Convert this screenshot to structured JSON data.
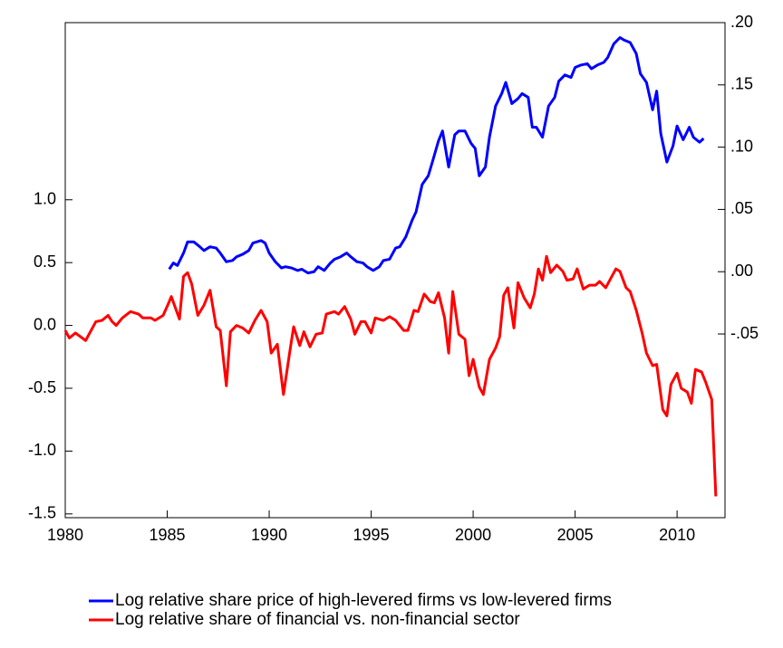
{
  "chart_data": {
    "type": "line",
    "xlim": [
      1980,
      2012.35
    ],
    "xticks": [
      1980,
      1985,
      1990,
      1995,
      2000,
      2005,
      2010
    ],
    "ylim": [
      -1.53,
      2.41
    ],
    "yticks": [
      {
        "value": -1.5,
        "label": "-1.5"
      },
      {
        "value": -1.0,
        "label": "-1.0"
      },
      {
        "value": -0.5,
        "label": "-0.5"
      },
      {
        "value": 0.0,
        "label": "0.0"
      },
      {
        "value": 0.5,
        "label": "0.5"
      },
      {
        "value": 1.0,
        "label": "1.0"
      }
    ],
    "y2lim": [
      -0.1975,
      0.2
    ],
    "y2ticks": [
      {
        "value": -0.05,
        "label": "-.05"
      },
      {
        "value": 0.0,
        "label": ".00"
      },
      {
        "value": 0.05,
        "label": ".05"
      },
      {
        "value": 0.1,
        "label": ".10"
      },
      {
        "value": 0.15,
        "label": ".15"
      },
      {
        "value": 0.2,
        "label": ".20"
      }
    ],
    "series": [
      {
        "name": "Log relative share price of high-levered firms vs low-levered firms",
        "color": "#0000ff",
        "axis": "y2",
        "x": [
          1985.1,
          1985.3,
          1985.5,
          1985.8,
          1986.0,
          1986.3,
          1986.6,
          1986.8,
          1987.1,
          1987.4,
          1987.6,
          1987.9,
          1988.2,
          1988.4,
          1988.7,
          1989.0,
          1989.2,
          1989.6,
          1989.8,
          1990.0,
          1990.3,
          1990.6,
          1990.8,
          1991.1,
          1991.4,
          1991.6,
          1991.9,
          1992.2,
          1992.4,
          1992.7,
          1993.0,
          1993.2,
          1993.5,
          1993.8,
          1994.0,
          1994.3,
          1994.6,
          1994.8,
          1995.1,
          1995.4,
          1995.6,
          1995.9,
          1996.2,
          1996.4,
          1996.7,
          1997.0,
          1997.2,
          1997.5,
          1997.8,
          1998.0,
          1998.3,
          1998.5,
          1998.8,
          1999.1,
          1999.3,
          1999.6,
          1999.9,
          2000.1,
          2000.3,
          2000.6,
          2000.8,
          2001.1,
          2001.4,
          2001.6,
          2001.9,
          2002.2,
          2002.4,
          2002.7,
          2002.9,
          2003.1,
          2003.4,
          2003.7,
          2004.0,
          2004.2,
          2004.5,
          2004.8,
          2005.0,
          2005.3,
          2005.6,
          2005.8,
          2006.1,
          2006.4,
          2006.6,
          2006.9,
          2007.2,
          2007.4,
          2007.7,
          2008.0,
          2008.2,
          2008.5,
          2008.8,
          2009.0,
          2009.2,
          2009.5,
          2009.8,
          2010.0,
          2010.3,
          2010.6,
          2010.8,
          2011.1,
          2011.3
        ],
        "values": [
          0.002,
          0.007,
          0.005,
          0.015,
          0.024,
          0.024,
          0.02,
          0.017,
          0.02,
          0.019,
          0.015,
          0.008,
          0.009,
          0.012,
          0.014,
          0.017,
          0.023,
          0.025,
          0.023,
          0.015,
          0.008,
          0.003,
          0.004,
          0.003,
          0.001,
          0.002,
          -0.001,
          0.0,
          0.004,
          0.001,
          0.007,
          0.01,
          0.012,
          0.015,
          0.012,
          0.008,
          0.007,
          0.004,
          0.001,
          0.004,
          0.009,
          0.01,
          0.019,
          0.02,
          0.028,
          0.041,
          0.048,
          0.07,
          0.077,
          0.088,
          0.105,
          0.113,
          0.084,
          0.11,
          0.113,
          0.113,
          0.103,
          0.099,
          0.077,
          0.084,
          0.108,
          0.133,
          0.143,
          0.152,
          0.135,
          0.139,
          0.143,
          0.14,
          0.116,
          0.116,
          0.108,
          0.133,
          0.14,
          0.153,
          0.158,
          0.156,
          0.164,
          0.166,
          0.167,
          0.163,
          0.166,
          0.168,
          0.172,
          0.183,
          0.188,
          0.186,
          0.184,
          0.175,
          0.159,
          0.152,
          0.13,
          0.145,
          0.111,
          0.088,
          0.101,
          0.117,
          0.106,
          0.116,
          0.108,
          0.104,
          0.107
        ]
      },
      {
        "name": "Log relative share of financial vs. non-financial sector",
        "color": "#ff0000",
        "axis": "y",
        "x": [
          1980.0,
          1980.2,
          1980.5,
          1981.0,
          1981.5,
          1981.8,
          1982.1,
          1982.3,
          1982.5,
          1982.8,
          1983.2,
          1983.6,
          1983.8,
          1984.2,
          1984.4,
          1984.8,
          1985.1,
          1985.2,
          1985.6,
          1985.8,
          1986.0,
          1986.2,
          1986.5,
          1986.8,
          1987.1,
          1987.4,
          1987.6,
          1987.9,
          1988.1,
          1988.4,
          1988.7,
          1989.0,
          1989.3,
          1989.6,
          1989.9,
          1990.1,
          1990.4,
          1990.7,
          1991.0,
          1991.2,
          1991.5,
          1991.7,
          1992.0,
          1992.3,
          1992.6,
          1992.8,
          1993.2,
          1993.4,
          1993.7,
          1994.0,
          1994.2,
          1994.5,
          1994.7,
          1995.0,
          1995.2,
          1995.6,
          1995.9,
          1996.2,
          1996.6,
          1996.8,
          1997.1,
          1997.3,
          1997.6,
          1997.9,
          1998.1,
          1998.3,
          1998.6,
          1998.8,
          1999.0,
          1999.3,
          1999.6,
          1999.8,
          2000.0,
          2000.3,
          2000.5,
          2000.8,
          2001.1,
          2001.3,
          2001.5,
          2001.7,
          2002.0,
          2002.2,
          2002.5,
          2002.8,
          2003.0,
          2003.2,
          2003.4,
          2003.6,
          2003.8,
          2004.1,
          2004.4,
          2004.6,
          2004.9,
          2005.1,
          2005.4,
          2005.7,
          2006.0,
          2006.2,
          2006.5,
          2006.8,
          2007.0,
          2007.2,
          2007.5,
          2007.7,
          2008.0,
          2008.3,
          2008.5,
          2008.8,
          2009.0,
          2009.3,
          2009.5,
          2009.7,
          2010.0,
          2010.2,
          2010.5,
          2010.7,
          2010.9,
          2011.2,
          2011.4,
          2011.7,
          2011.9
        ],
        "values": [
          -0.04,
          -0.1,
          -0.06,
          -0.12,
          0.03,
          0.04,
          0.08,
          0.03,
          0.0,
          0.06,
          0.11,
          0.09,
          0.06,
          0.06,
          0.04,
          0.08,
          0.19,
          0.23,
          0.05,
          0.39,
          0.42,
          0.33,
          0.08,
          0.16,
          0.28,
          -0.01,
          -0.04,
          -0.48,
          -0.05,
          0.0,
          -0.02,
          -0.06,
          0.04,
          0.12,
          0.03,
          -0.22,
          -0.15,
          -0.55,
          -0.22,
          -0.01,
          -0.16,
          -0.05,
          -0.17,
          -0.07,
          -0.06,
          0.09,
          0.11,
          0.09,
          0.15,
          0.05,
          -0.07,
          0.03,
          0.03,
          -0.06,
          0.06,
          0.04,
          0.07,
          0.04,
          -0.04,
          -0.04,
          0.12,
          0.11,
          0.25,
          0.19,
          0.18,
          0.26,
          0.06,
          -0.22,
          0.27,
          -0.07,
          -0.11,
          -0.4,
          -0.27,
          -0.49,
          -0.55,
          -0.27,
          -0.18,
          -0.09,
          0.24,
          0.3,
          -0.02,
          0.34,
          0.22,
          0.14,
          0.25,
          0.45,
          0.36,
          0.55,
          0.42,
          0.48,
          0.43,
          0.36,
          0.37,
          0.45,
          0.29,
          0.32,
          0.32,
          0.35,
          0.3,
          0.39,
          0.45,
          0.43,
          0.3,
          0.27,
          0.12,
          -0.07,
          -0.22,
          -0.32,
          -0.31,
          -0.67,
          -0.72,
          -0.47,
          -0.38,
          -0.5,
          -0.53,
          -0.62,
          -0.35,
          -0.37,
          -0.45,
          -0.59,
          -1.36
        ]
      }
    ]
  }
}
